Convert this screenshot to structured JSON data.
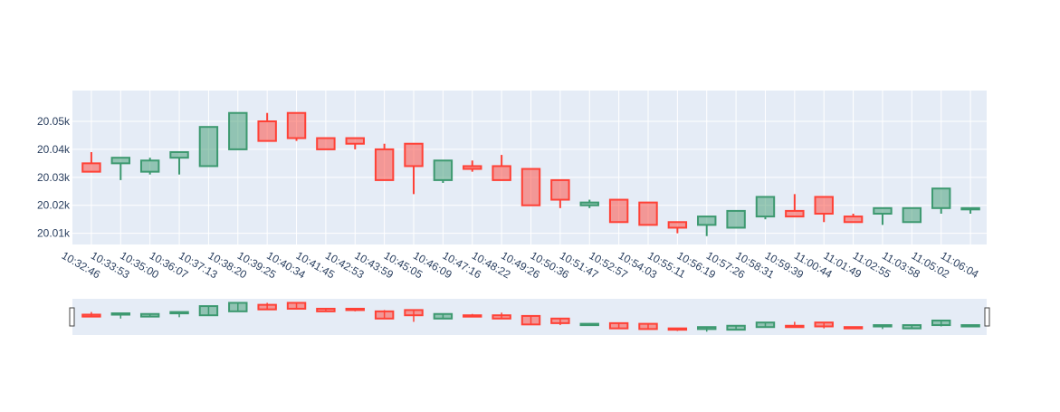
{
  "chart_data": {
    "type": "candlestick",
    "increasing_color": "#3D9970",
    "decreasing_color": "#FF4136",
    "plot_background": "#E5ECF6",
    "grid": true,
    "rangeslider": true,
    "ylim": [
      20006,
      20061
    ],
    "yticks": [
      {
        "value": 20010,
        "label": "20.01k"
      },
      {
        "value": 20020,
        "label": "20.02k"
      },
      {
        "value": 20030,
        "label": "20.03k"
      },
      {
        "value": 20040,
        "label": "20.04k"
      },
      {
        "value": 20050,
        "label": "20.05k"
      }
    ],
    "categories": [
      "10:32:46",
      "10:33:53",
      "10:35:00",
      "10:36:07",
      "10:37:13",
      "10:38:20",
      "10:39:25",
      "10:40:34",
      "10:41:45",
      "10:42:53",
      "10:43:59",
      "10:45:05",
      "10:46:09",
      "10:47:16",
      "10:48:22",
      "10:49:26",
      "10:50:36",
      "10:51:47",
      "10:52:57",
      "10:54:03",
      "10:55:11",
      "10:56:19",
      "10:57:26",
      "10:58:31",
      "10:59:39",
      "11:00:44",
      "11:01:49",
      "11:02:55",
      "11:03:58",
      "11:05:02",
      "11:06:04"
    ],
    "open": [
      20035,
      20035,
      20032,
      20037,
      20034,
      20040,
      20050,
      20053,
      20044,
      20044,
      20040,
      20042,
      20029,
      20034,
      20034,
      20033,
      20029,
      20020,
      20022,
      20021,
      20014,
      20013,
      20012,
      20016,
      20018,
      20023,
      20016,
      20017,
      20014,
      20019,
      20019
    ],
    "high": [
      20039,
      20037,
      20037,
      20039,
      20048,
      20053,
      20053,
      20053,
      20044,
      20044,
      20042,
      20042,
      20036,
      20036,
      20038,
      20033,
      20029,
      20022,
      20022,
      20021,
      20014,
      20016,
      20018,
      20023,
      20024,
      20023,
      20017,
      20019,
      20019,
      20026,
      20019
    ],
    "low": [
      20032,
      20029,
      20031,
      20031,
      20034,
      20040,
      20043,
      20043,
      20040,
      20040,
      20029,
      20024,
      20028,
      20032,
      20029,
      20020,
      20019,
      20019,
      20014,
      20013,
      20010,
      20009,
      20012,
      20015,
      20016,
      20014,
      20014,
      20013,
      20014,
      20017,
      20017
    ],
    "close": [
      20032,
      20037,
      20036,
      20039,
      20048,
      20053,
      20043,
      20044,
      20040,
      20042,
      20029,
      20034,
      20036,
      20033,
      20029,
      20020,
      20022,
      20021,
      20014,
      20013,
      20012,
      20016,
      20018,
      20023,
      20016,
      20017,
      20014,
      20019,
      20019,
      20026,
      20019
    ]
  }
}
